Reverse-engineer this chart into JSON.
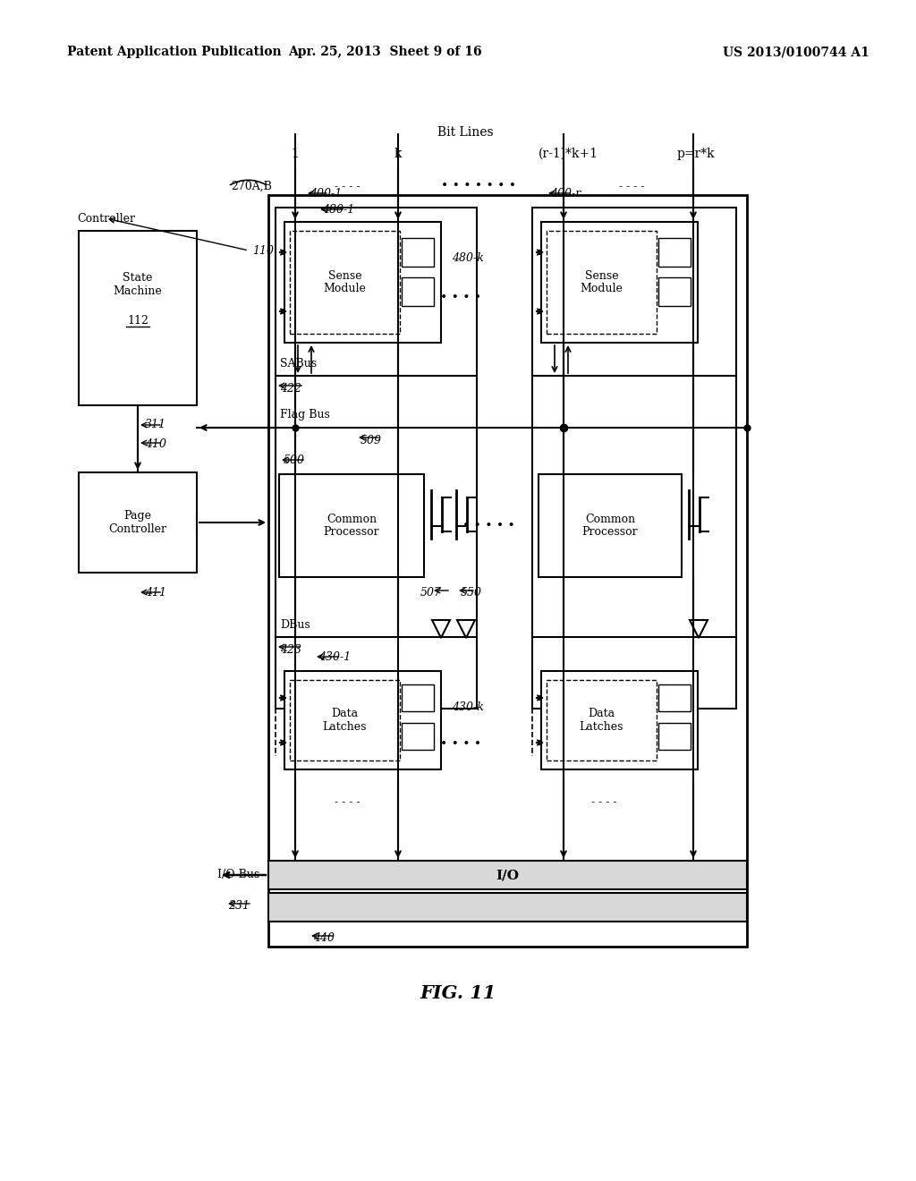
{
  "bg_color": "#ffffff",
  "header_left": "Patent Application Publication",
  "header_mid": "Apr. 25, 2013  Sheet 9 of 16",
  "header_right": "US 2013/0100744 A1",
  "fig_label": "FIG. 11",
  "title_bitlines": "Bit Lines",
  "label_1": "1",
  "label_k": "k",
  "label_r1k1": "(r-1)*k+1",
  "label_prk": "p=r*k",
  "label_270": "270A,B",
  "label_110": "110",
  "label_400_1": "400-1",
  "label_400_r": "400-r",
  "label_480_1": "480-1",
  "label_480_k": "480-k",
  "label_500": "500",
  "label_507": "507",
  "label_550": "550",
  "label_422": "422",
  "label_423": "423",
  "label_509": "509",
  "label_311": "311",
  "label_410": "410",
  "label_411": "411",
  "label_430_1": "430-1",
  "label_430_k": "430-k",
  "label_231": "231",
  "label_440": "440",
  "label_112": "112",
  "text_controller": "Controller",
  "text_state_machine": "State\nMachine",
  "text_page_controller": "Page\nController",
  "text_sense_module": "Sense\nModule",
  "text_common_processor": "Common\nProcessor",
  "text_data_latches": "Data\nLatches",
  "text_sabus": "SABus",
  "text_flagbus": "Flag Bus",
  "text_dbus": "DBus",
  "text_io_bus": "I/O Bus",
  "text_io": "I/O"
}
